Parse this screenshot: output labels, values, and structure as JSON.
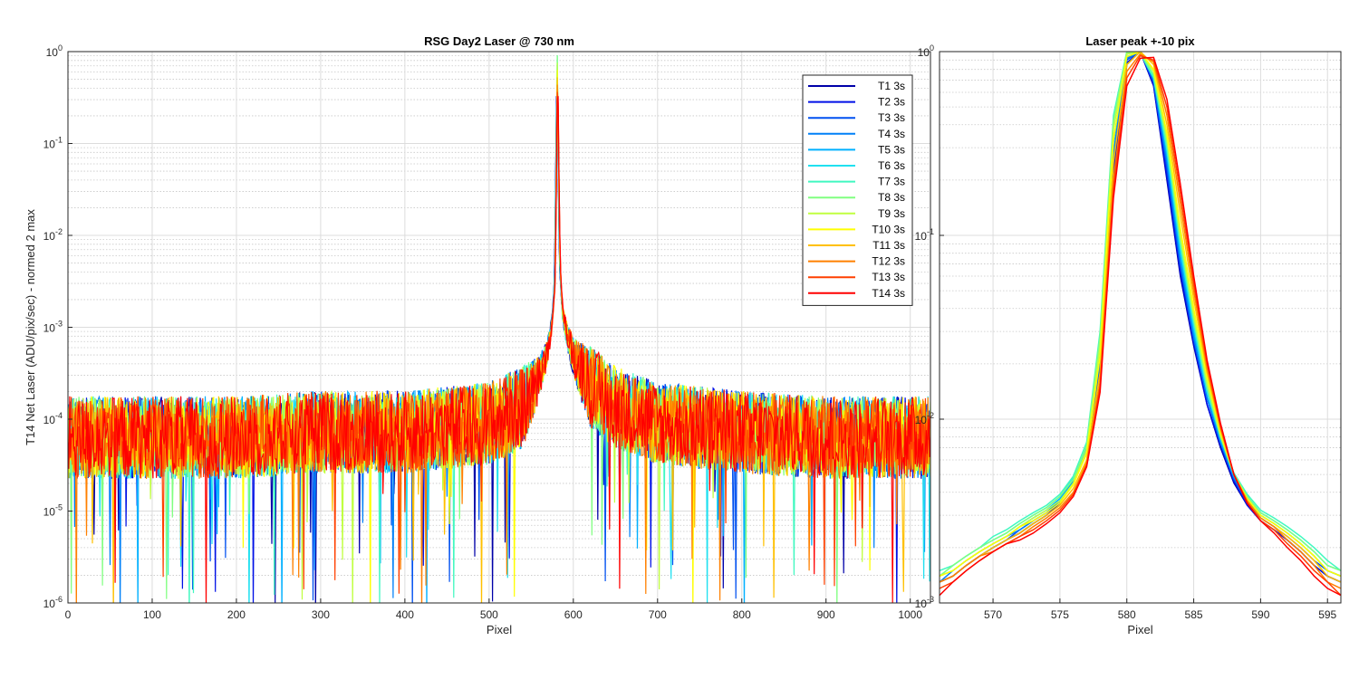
{
  "chart_data": [
    {
      "type": "line",
      "title": "RSG  Day2 Laser @ 730 nm",
      "xlabel": "Pixel",
      "ylabel": "T14 Net Laser (ADU/pix/sec) - normed 2 max",
      "x_scale": "linear",
      "y_scale": "log",
      "xlim": [
        0,
        1024
      ],
      "ylim": [
        1e-06,
        1
      ],
      "grid": true,
      "minor_grid": true,
      "legend_position": "top-right",
      "x_ticks": [
        "0",
        "100",
        "200",
        "300",
        "400",
        "500",
        "600",
        "700",
        "800",
        "900",
        "1000"
      ],
      "y_ticks": [
        {
          "base": "10",
          "exp": "0"
        },
        {
          "base": "10",
          "exp": "-1"
        },
        {
          "base": "10",
          "exp": "-2"
        },
        {
          "base": "10",
          "exp": "-3"
        },
        {
          "base": "10",
          "exp": "-4"
        },
        {
          "base": "10",
          "exp": "-5"
        },
        {
          "base": "10",
          "exp": "-6"
        }
      ],
      "peak_pixel": 581,
      "peak_value": 1,
      "profile_points": {
        "x": [
          0,
          100,
          200,
          300,
          400,
          500,
          540,
          560,
          570,
          575,
          578,
          580,
          581,
          582,
          584,
          587,
          592,
          600,
          620,
          650,
          700,
          800,
          900,
          1024
        ],
        "y": [
          7e-05,
          7e-05,
          7e-05,
          8e-05,
          8e-05,
          0.0001,
          0.00015,
          0.0003,
          0.0006,
          0.0012,
          0.003,
          0.1,
          1,
          0.1,
          0.005,
          0.0015,
          0.0009,
          0.0005,
          0.00025,
          0.00015,
          0.0001,
          8e-05,
          7e-05,
          7e-05
        ]
      },
      "noise_floor_range": [
        2e-05,
        0.00015
      ]
    },
    {
      "type": "line",
      "title": "Laser peak +-10 pix",
      "xlabel": "Pixel",
      "x_scale": "linear",
      "y_scale": "log",
      "xlim": [
        566,
        596
      ],
      "ylim": [
        0.001,
        1
      ],
      "grid": true,
      "minor_grid": true,
      "x_ticks": [
        "570",
        "575",
        "580",
        "585",
        "590",
        "595"
      ],
      "y_ticks": [
        {
          "base": "10",
          "exp": "0"
        },
        {
          "base": "10",
          "exp": "-1"
        },
        {
          "base": "10",
          "exp": "-2"
        },
        {
          "base": "10",
          "exp": "-3"
        }
      ],
      "x": [
        566,
        567,
        568,
        569,
        570,
        571,
        572,
        573,
        574,
        575,
        576,
        577,
        578,
        579,
        580,
        581,
        582,
        583,
        584,
        585,
        586,
        587,
        588,
        589,
        590,
        591,
        592,
        593,
        594,
        595,
        596
      ],
      "series": [
        {
          "name": "T1 3s",
          "color": "#0000a8",
          "values": [
            0.0013,
            0.0014,
            0.0016,
            0.0018,
            0.002,
            0.0022,
            0.0024,
            0.0027,
            0.003,
            0.0035,
            0.0045,
            0.0065,
            0.018,
            0.2,
            0.85,
            1.0,
            0.65,
            0.2,
            0.06,
            0.025,
            0.012,
            0.007,
            0.0045,
            0.0034,
            0.0028,
            0.0025,
            0.0022,
            0.0019,
            0.0016,
            0.0014,
            0.0013
          ]
        },
        {
          "name": "T2 3s",
          "color": "#0010e6",
          "values": [
            0.0013,
            0.0014,
            0.0016,
            0.0018,
            0.002,
            0.0022,
            0.0024,
            0.0027,
            0.003,
            0.0035,
            0.0045,
            0.0066,
            0.019,
            0.22,
            0.87,
            1.0,
            0.66,
            0.21,
            0.063,
            0.026,
            0.012,
            0.0072,
            0.0046,
            0.0034,
            0.0028,
            0.0025,
            0.0022,
            0.0019,
            0.0016,
            0.0014,
            0.0013
          ]
        },
        {
          "name": "T3 3s",
          "color": "#0050f0",
          "values": [
            0.0013,
            0.0014,
            0.0016,
            0.0018,
            0.002,
            0.0022,
            0.0025,
            0.0028,
            0.0031,
            0.0036,
            0.0046,
            0.0067,
            0.02,
            0.25,
            0.9,
            1.0,
            0.68,
            0.23,
            0.068,
            0.027,
            0.013,
            0.0074,
            0.0047,
            0.0035,
            0.0029,
            0.0026,
            0.0023,
            0.002,
            0.0017,
            0.0015,
            0.0014
          ]
        },
        {
          "name": "T4 3s",
          "color": "#0080f8",
          "values": [
            0.0013,
            0.0015,
            0.0017,
            0.0019,
            0.0021,
            0.0023,
            0.0025,
            0.0028,
            0.0031,
            0.0036,
            0.0046,
            0.0068,
            0.021,
            0.28,
            0.92,
            1.0,
            0.7,
            0.25,
            0.072,
            0.028,
            0.013,
            0.0075,
            0.0048,
            0.0036,
            0.003,
            0.0027,
            0.0024,
            0.0021,
            0.0018,
            0.0015,
            0.0014
          ]
        },
        {
          "name": "T5 3s",
          "color": "#00b0ff",
          "values": [
            0.0014,
            0.0015,
            0.0017,
            0.0019,
            0.0021,
            0.0023,
            0.0026,
            0.0029,
            0.0032,
            0.0037,
            0.0047,
            0.007,
            0.023,
            0.32,
            0.94,
            1.0,
            0.72,
            0.27,
            0.078,
            0.03,
            0.014,
            0.0077,
            0.0049,
            0.0037,
            0.003,
            0.0027,
            0.0024,
            0.0021,
            0.0018,
            0.0015,
            0.0014
          ]
        },
        {
          "name": "T6 3s",
          "color": "#20e0f0",
          "values": [
            0.0014,
            0.0016,
            0.0018,
            0.002,
            0.0022,
            0.0024,
            0.0027,
            0.003,
            0.0033,
            0.0038,
            0.0048,
            0.0072,
            0.026,
            0.38,
            0.97,
            1.0,
            0.74,
            0.29,
            0.085,
            0.032,
            0.014,
            0.008,
            0.005,
            0.0038,
            0.0031,
            0.0028,
            0.0025,
            0.0022,
            0.0019,
            0.0016,
            0.0015
          ]
        },
        {
          "name": "T7 3s",
          "color": "#40f8c0",
          "values": [
            0.0015,
            0.0016,
            0.0018,
            0.002,
            0.0023,
            0.0025,
            0.0028,
            0.0031,
            0.0034,
            0.0039,
            0.0049,
            0.0075,
            0.03,
            0.45,
            1.0,
            0.98,
            0.72,
            0.3,
            0.09,
            0.034,
            0.015,
            0.0082,
            0.0051,
            0.0039,
            0.0032,
            0.0029,
            0.0026,
            0.0023,
            0.002,
            0.0017,
            0.0015
          ]
        },
        {
          "name": "T8 3s",
          "color": "#80ff80",
          "values": [
            0.0014,
            0.0016,
            0.0018,
            0.002,
            0.0022,
            0.0024,
            0.0027,
            0.003,
            0.0033,
            0.0038,
            0.0047,
            0.0072,
            0.028,
            0.42,
            0.99,
            0.99,
            0.75,
            0.32,
            0.095,
            0.035,
            0.015,
            0.008,
            0.005,
            0.0038,
            0.0031,
            0.0028,
            0.0025,
            0.0022,
            0.0019,
            0.0016,
            0.0015
          ]
        },
        {
          "name": "T9 3s",
          "color": "#c0ff40",
          "values": [
            0.0014,
            0.0015,
            0.0017,
            0.0019,
            0.0021,
            0.0023,
            0.0026,
            0.0029,
            0.0032,
            0.0036,
            0.0045,
            0.0068,
            0.025,
            0.38,
            0.97,
            1.0,
            0.78,
            0.34,
            0.1,
            0.037,
            0.016,
            0.0082,
            0.005,
            0.0037,
            0.003,
            0.0027,
            0.0024,
            0.0021,
            0.0018,
            0.0015,
            0.0014
          ]
        },
        {
          "name": "T10 3s",
          "color": "#ffff00",
          "values": [
            0.0014,
            0.0015,
            0.0017,
            0.0019,
            0.0021,
            0.0023,
            0.0026,
            0.0028,
            0.0031,
            0.0035,
            0.0044,
            0.0065,
            0.022,
            0.33,
            0.94,
            1.0,
            0.8,
            0.36,
            0.11,
            0.04,
            0.017,
            0.0085,
            0.005,
            0.0037,
            0.003,
            0.0027,
            0.0024,
            0.0021,
            0.0018,
            0.0015,
            0.0014
          ]
        },
        {
          "name": "T11 3s",
          "color": "#ffc000",
          "values": [
            0.0013,
            0.0014,
            0.0016,
            0.0018,
            0.002,
            0.0022,
            0.0024,
            0.0027,
            0.003,
            0.0034,
            0.0042,
            0.006,
            0.018,
            0.25,
            0.85,
            1.0,
            0.85,
            0.4,
            0.13,
            0.045,
            0.018,
            0.0088,
            0.005,
            0.0036,
            0.0029,
            0.0026,
            0.0023,
            0.002,
            0.0017,
            0.0014,
            0.0013
          ]
        },
        {
          "name": "T12 3s",
          "color": "#ff8000",
          "values": [
            0.0013,
            0.0014,
            0.0016,
            0.0018,
            0.0019,
            0.0021,
            0.0023,
            0.0026,
            0.0029,
            0.0033,
            0.004,
            0.0058,
            0.016,
            0.2,
            0.78,
            0.97,
            0.88,
            0.45,
            0.15,
            0.05,
            0.019,
            0.009,
            0.005,
            0.0036,
            0.0029,
            0.0026,
            0.0022,
            0.0019,
            0.0016,
            0.0013,
            0.0012
          ]
        },
        {
          "name": "T13 3s",
          "color": "#ff4000",
          "values": [
            0.0012,
            0.0013,
            0.0015,
            0.0017,
            0.0019,
            0.0021,
            0.0023,
            0.0025,
            0.0028,
            0.0032,
            0.0039,
            0.0056,
            0.015,
            0.18,
            0.72,
            0.95,
            0.9,
            0.5,
            0.17,
            0.055,
            0.02,
            0.0092,
            0.005,
            0.0035,
            0.0028,
            0.0025,
            0.0021,
            0.0018,
            0.0015,
            0.0013,
            0.0011
          ]
        },
        {
          "name": "T14 3s",
          "color": "#ff0000",
          "values": [
            0.0011,
            0.0013,
            0.0015,
            0.0017,
            0.0019,
            0.0021,
            0.0022,
            0.0024,
            0.0027,
            0.0031,
            0.0038,
            0.0055,
            0.014,
            0.16,
            0.65,
            0.92,
            0.93,
            0.55,
            0.19,
            0.06,
            0.021,
            0.0095,
            0.005,
            0.0035,
            0.0028,
            0.0024,
            0.002,
            0.0017,
            0.0014,
            0.0012,
            0.0011
          ]
        }
      ]
    }
  ]
}
